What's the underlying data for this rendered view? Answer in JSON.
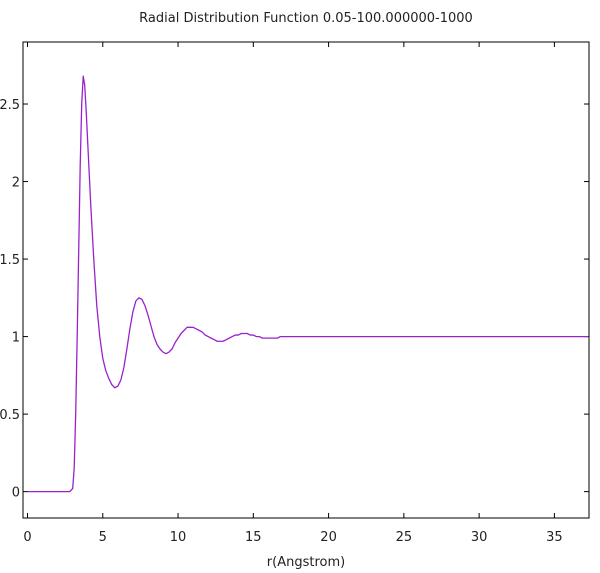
{
  "chart_data": {
    "type": "line",
    "title": "Radial Distribution Function 0.05-100.000000-1000",
    "xlabel": "r(Angstrom)",
    "ylabel": "",
    "xlim": [
      -0.3,
      37.3
    ],
    "ylim": [
      -0.17,
      2.9
    ],
    "x_ticks": [
      0,
      5,
      10,
      15,
      20,
      25,
      30,
      35
    ],
    "y_ticks": [
      0,
      0.5,
      1,
      1.5,
      2,
      2.5
    ],
    "x_tick_labels": [
      "0",
      "5",
      "10",
      "15",
      "20",
      "25",
      "30",
      "35"
    ],
    "y_tick_labels": [
      "0",
      "0.5",
      "1",
      "1.5",
      "2",
      "2.5"
    ],
    "grid": false,
    "legend": "none",
    "series": [
      {
        "color": "#9a22cc",
        "x": [
          0,
          1,
          2,
          2.8,
          3.0,
          3.1,
          3.2,
          3.3,
          3.4,
          3.5,
          3.6,
          3.7,
          3.8,
          3.9,
          4.0,
          4.2,
          4.4,
          4.6,
          4.8,
          5.0,
          5.2,
          5.4,
          5.6,
          5.8,
          6.0,
          6.2,
          6.4,
          6.6,
          6.8,
          7.0,
          7.2,
          7.4,
          7.6,
          7.8,
          8.0,
          8.2,
          8.4,
          8.6,
          8.8,
          9.0,
          9.2,
          9.4,
          9.6,
          9.8,
          10.0,
          10.2,
          10.4,
          10.6,
          10.8,
          11.0,
          11.2,
          11.4,
          11.6,
          11.8,
          12.0,
          12.2,
          12.4,
          12.6,
          12.8,
          13.0,
          13.2,
          13.4,
          13.6,
          13.8,
          14.0,
          14.2,
          14.4,
          14.6,
          14.8,
          15.0,
          15.2,
          15.4,
          15.6,
          15.8,
          16.0,
          16.2,
          16.4,
          16.6,
          16.8,
          17.0,
          17.2,
          17.4,
          17.6,
          17.8,
          18.0,
          18.2,
          18.4,
          18.6,
          18.8,
          19.0,
          19.5,
          20.0,
          20.5,
          21.0,
          21.5,
          22.0,
          22.5,
          23.0,
          23.5,
          24.0,
          24.5,
          25.0,
          25.5,
          26.0,
          26.5,
          27.0,
          27.5,
          28.0,
          28.5,
          29.0,
          29.5,
          30.0,
          30.5,
          31.0,
          31.5,
          32.0,
          32.5,
          33.0,
          33.5,
          34.0,
          34.5,
          35.0,
          35.5,
          36.0,
          36.5,
          37.0,
          37.3
        ],
        "y": [
          0,
          0,
          0,
          0,
          0.02,
          0.15,
          0.5,
          1.0,
          1.55,
          2.1,
          2.5,
          2.68,
          2.62,
          2.45,
          2.25,
          1.85,
          1.5,
          1.2,
          1.0,
          0.86,
          0.78,
          0.73,
          0.69,
          0.67,
          0.68,
          0.72,
          0.8,
          0.92,
          1.05,
          1.16,
          1.23,
          1.25,
          1.24,
          1.2,
          1.14,
          1.07,
          1.0,
          0.95,
          0.92,
          0.9,
          0.89,
          0.9,
          0.92,
          0.96,
          0.99,
          1.02,
          1.04,
          1.06,
          1.06,
          1.06,
          1.05,
          1.04,
          1.03,
          1.01,
          1.0,
          0.99,
          0.98,
          0.97,
          0.97,
          0.97,
          0.98,
          0.99,
          1.0,
          1.01,
          1.01,
          1.02,
          1.02,
          1.02,
          1.01,
          1.01,
          1.0,
          1.0,
          0.99,
          0.99,
          0.99,
          0.99,
          0.99,
          0.99,
          1.0,
          1.0,
          1.0,
          1.0,
          1.0,
          1.0,
          1.0,
          1.0,
          1.0,
          1.0,
          1.0,
          1.0,
          1.0,
          1.0,
          1.0,
          1.0,
          1.0,
          1.0,
          1.0,
          1.0,
          1.0,
          1.0,
          1.0,
          1.0,
          1.0,
          1.0,
          1.0,
          1.0,
          1.0,
          1.0,
          1.0,
          1.0,
          1.0,
          1.0,
          1.0,
          1.0,
          1.0,
          1.0,
          1.0,
          1.0,
          1.0,
          1.0,
          1.0,
          1.0,
          1.0,
          1.0,
          1.0,
          1.0,
          1.0
        ]
      }
    ]
  }
}
